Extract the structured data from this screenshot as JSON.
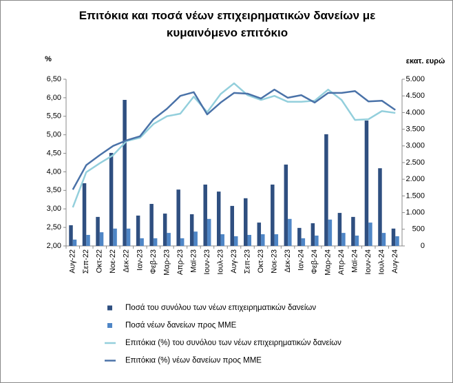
{
  "chart_data": {
    "type": "combo",
    "title": "Επιτόκια και ποσά νέων επιχειρηματικών δανείων με κυμαινόμενο επιτόκιο",
    "y_label": "%",
    "y2_label": "εκατ. ευρώ",
    "categories": [
      "Αυγ-22",
      "Σεπ-22",
      "Οκτ-22",
      "Νοε-22",
      "Δεκ-22",
      "Ιαν-23",
      "Φεβ-23",
      "Μαρ-23",
      "Απρ-23",
      "Μαϊ-23",
      "Ιουν-23",
      "Ιουλ-23",
      "Αυγ-23",
      "Σεπ-23",
      "Οκτ-23",
      "Νοε-23",
      "Δεκ-23",
      "Ιαν-24",
      "Φεβ-24",
      "Μαρ-24",
      "Απρ-24",
      "Μαϊ-24",
      "Ιουν-24",
      "Ιουλ-24",
      "Αυγ-24"
    ],
    "series": [
      {
        "name": "Ποσά του συνόλου των νέων επιχειρηματικών δανείων",
        "type": "bar",
        "axis": "y2",
        "color": "#2f4f80",
        "values": [
          620,
          1880,
          870,
          2790,
          4380,
          910,
          1260,
          970,
          1690,
          950,
          1840,
          1630,
          1200,
          1430,
          700,
          1840,
          2440,
          540,
          680,
          3350,
          990,
          870,
          3760,
          2330,
          520
        ]
      },
      {
        "name": "Ποσά νέων δανείων προς ΜΜΕ",
        "type": "bar",
        "axis": "y2",
        "color": "#4f86c6",
        "values": [
          190,
          330,
          410,
          520,
          520,
          230,
          230,
          390,
          230,
          430,
          810,
          350,
          290,
          330,
          350,
          350,
          810,
          230,
          310,
          790,
          390,
          310,
          700,
          390,
          290
        ]
      },
      {
        "name": "Επιτόκια (%) του συνόλου των νέων επιχειρηματικών δανείων",
        "type": "line",
        "color": "#93cfdc",
        "values": [
          3.04,
          3.99,
          4.23,
          4.45,
          4.83,
          4.92,
          5.29,
          5.5,
          5.57,
          6.03,
          5.61,
          6.1,
          6.39,
          6.07,
          5.94,
          6.05,
          5.89,
          5.89,
          5.92,
          6.22,
          5.94,
          5.4,
          5.42,
          5.64,
          5.59
        ]
      },
      {
        "name": "Επιτόκια (%) νέων δανείων προς ΜΜΕ",
        "type": "line",
        "color": "#4a72a8",
        "values": [
          3.52,
          4.18,
          4.45,
          4.7,
          4.85,
          4.96,
          5.42,
          5.7,
          6.05,
          6.15,
          5.55,
          5.87,
          6.13,
          6.11,
          5.98,
          6.22,
          6.0,
          6.07,
          5.87,
          6.13,
          6.13,
          6.18,
          5.9,
          5.92,
          5.67
        ]
      }
    ],
    "ylim": [
      2,
      6.5
    ],
    "yticks": [
      {
        "value": 2,
        "label": "2,00"
      },
      {
        "value": 2.5,
        "label": "2,50"
      },
      {
        "value": 3,
        "label": "3,00"
      },
      {
        "value": 3.5,
        "label": "3,50"
      },
      {
        "value": 4,
        "label": "4,00"
      },
      {
        "value": 4.5,
        "label": "4,50"
      },
      {
        "value": 5,
        "label": "5,00"
      },
      {
        "value": 5.5,
        "label": "5,50"
      },
      {
        "value": 6,
        "label": "6,00"
      },
      {
        "value": 6.5,
        "label": "6,50"
      }
    ],
    "y2lim": [
      0,
      5000
    ],
    "y2ticks": [
      0,
      500,
      {
        "value": 1000,
        "label": "1.000"
      },
      {
        "value": 1500,
        "label": "1.500"
      },
      {
        "value": 2000,
        "label": "2.000"
      },
      {
        "value": 2500,
        "label": "2.500"
      },
      {
        "value": 3000,
        "label": "3.000"
      },
      {
        "value": 3500,
        "label": "3.500"
      },
      {
        "value": 4000,
        "label": "4.000"
      },
      {
        "value": 4500,
        "label": "4.500"
      },
      {
        "value": 5000,
        "label": "5.000"
      }
    ],
    "grid": false,
    "legend": "bottom"
  }
}
